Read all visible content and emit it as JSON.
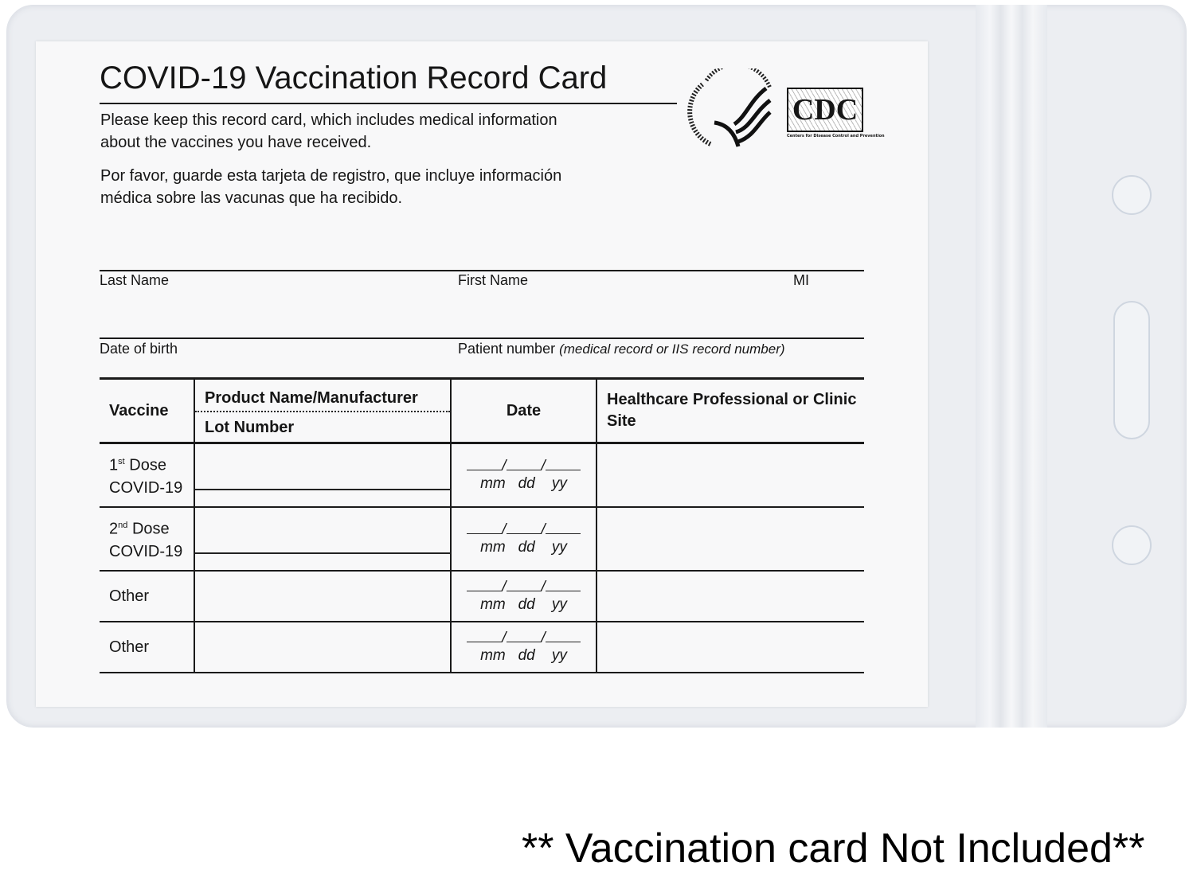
{
  "card": {
    "title": "COVID-19 Vaccination Record Card",
    "intro_en_1": "Please keep this record card, which includes medical information",
    "intro_en_2": "about the vaccines you have received.",
    "intro_es_1": "Por favor, guarde esta tarjeta de registro, que incluye información",
    "intro_es_2": "médica sobre las vacunas que ha recibido.",
    "logos": {
      "hhs": "Department of Health & Human Services USA",
      "cdc": "CDC",
      "cdc_sub": "Centers for Disease Control and Prevention"
    },
    "fields": {
      "last_name": "Last Name",
      "first_name": "First Name",
      "mi": "MI",
      "dob": "Date of birth",
      "patient_number": "Patient number",
      "patient_number_note": "(medical record or IIS record number)"
    },
    "table": {
      "headers": {
        "vaccine": "Vaccine",
        "product": "Product Name/Manufacturer",
        "lot": "Lot Number",
        "date": "Date",
        "site": "Healthcare Professional or Clinic Site"
      },
      "date_format": {
        "mm": "mm",
        "dd": "dd",
        "yy": "yy"
      },
      "rows": [
        {
          "ord": "1",
          "sup": "st",
          "line1": "Dose",
          "line2": "COVID-19"
        },
        {
          "ord": "2",
          "sup": "nd",
          "line1": "Dose",
          "line2": "COVID-19"
        },
        {
          "label": "Other"
        },
        {
          "label": "Other"
        }
      ]
    }
  },
  "caption": "** Vaccination card Not Included**",
  "colors": {
    "sleeve": "#eceef2",
    "card": "#f8f8f9",
    "ink": "#161616"
  }
}
